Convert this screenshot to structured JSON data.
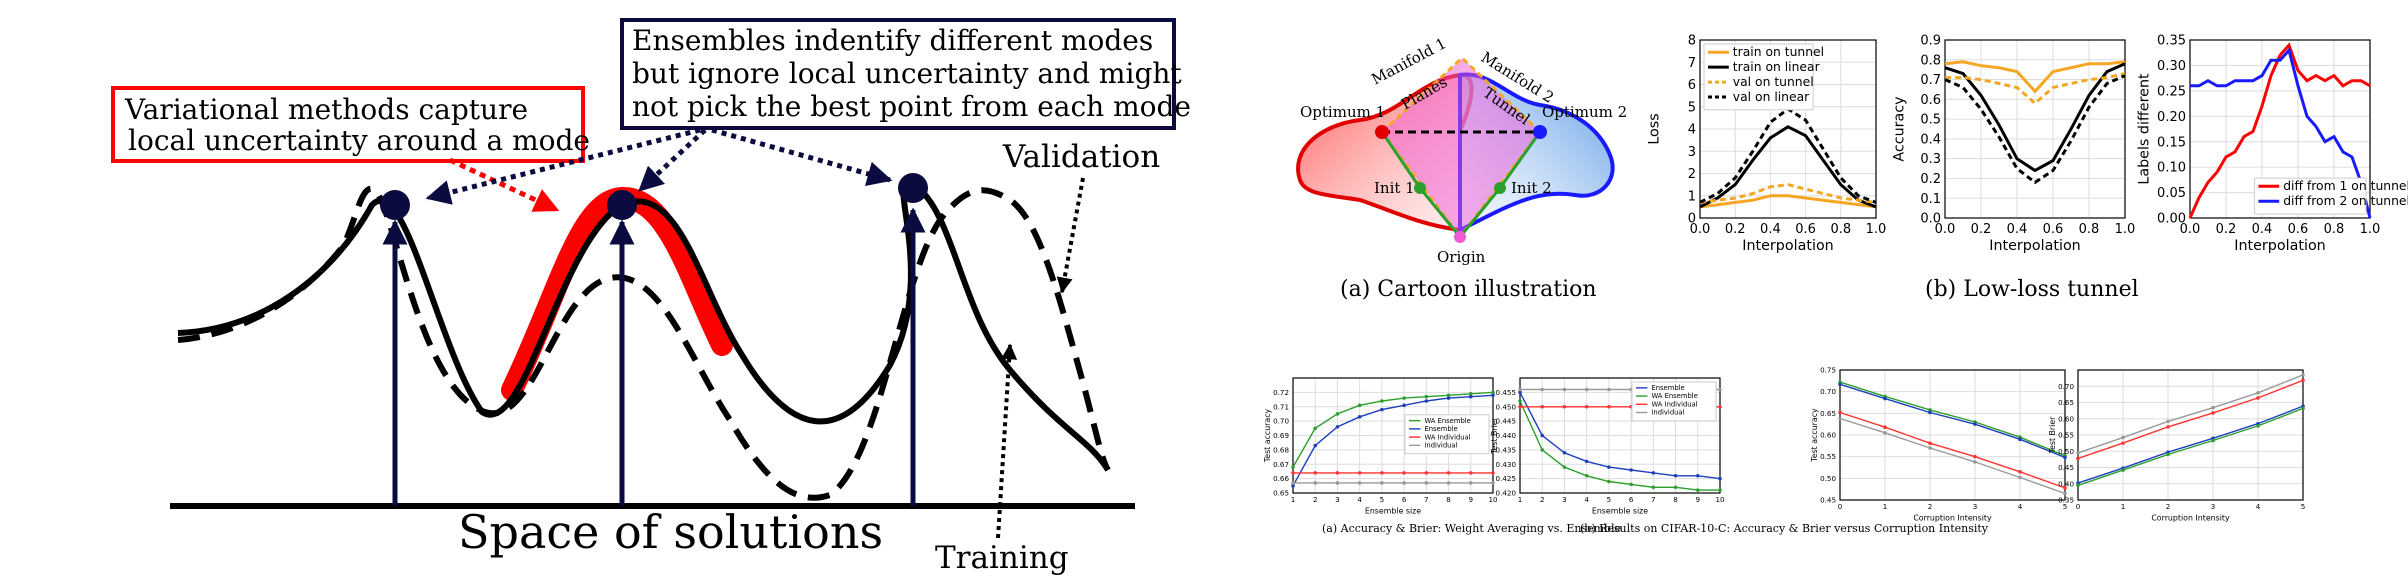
{
  "left_diagram": {
    "variational_box": [
      "Variational methods capture",
      "local uncertainty around a mode"
    ],
    "ensembles_box": [
      "Ensembles indentify different modes",
      "but ignore local uncertainty and might",
      "not pick the best point from each mode"
    ],
    "validation_label": "Validation",
    "training_label": "Training",
    "space_label": "Space of solutions"
  },
  "cartoon": {
    "labels": {
      "manifold1": "Manifold 1",
      "manifold2": "Manifold 2",
      "optimum1": "Optimum 1",
      "optimum2": "Optimum 2",
      "planes": "Planes",
      "tunnel": "Tunnel",
      "init1": "Init 1",
      "init2": "Init 2",
      "origin": "Origin"
    },
    "caption": "(a)  Cartoon illustration"
  },
  "tunnel_caption": "(b)  Low-loss tunnel",
  "colors": {
    "red": "#ff0000",
    "orange": "#f5a623",
    "blue": "#1a1aff",
    "green": "#2ca02c",
    "navy": "#0b0b3f",
    "pink": "#f05ad6"
  },
  "chart_data": [
    {
      "type": "line",
      "xlabel": "Interpolation",
      "ylabel": "Loss",
      "xlim": [
        0,
        1
      ],
      "ylim": [
        0,
        8
      ],
      "xticks": [
        "0.0",
        "0.2",
        "0.4",
        "0.6",
        "0.8",
        "1.0"
      ],
      "yticks": [
        "0",
        "1",
        "2",
        "3",
        "4",
        "5",
        "6",
        "7",
        "8"
      ],
      "legend": "top-left",
      "grid": true,
      "x": [
        0,
        0.1,
        0.2,
        0.3,
        0.4,
        0.5,
        0.6,
        0.7,
        0.8,
        0.9,
        1.0
      ],
      "series": [
        {
          "name": "train on tunnel",
          "color": "#f5a623",
          "dash": false,
          "values": [
            0.5,
            0.6,
            0.7,
            0.8,
            1.0,
            1.0,
            0.9,
            0.8,
            0.7,
            0.6,
            0.5
          ]
        },
        {
          "name": "train on linear",
          "color": "#000000",
          "dash": false,
          "values": [
            0.5,
            0.9,
            1.5,
            2.6,
            3.6,
            4.1,
            3.7,
            2.6,
            1.5,
            0.8,
            0.5
          ]
        },
        {
          "name": "val on tunnel",
          "color": "#f5a623",
          "dash": true,
          "values": [
            0.7,
            0.8,
            0.9,
            1.1,
            1.4,
            1.5,
            1.3,
            1.1,
            0.9,
            0.8,
            0.7
          ]
        },
        {
          "name": "val on linear",
          "color": "#000000",
          "dash": true,
          "values": [
            0.7,
            1.1,
            1.8,
            3.0,
            4.3,
            4.9,
            4.4,
            3.1,
            1.8,
            1.0,
            0.7
          ]
        }
      ]
    },
    {
      "type": "line",
      "xlabel": "Interpolation",
      "ylabel": "Accuracy",
      "xlim": [
        0,
        1
      ],
      "ylim": [
        0,
        0.9
      ],
      "xticks": [
        "0.0",
        "0.2",
        "0.4",
        "0.6",
        "0.8",
        "1.0"
      ],
      "yticks": [
        "0.0",
        "0.1",
        "0.2",
        "0.3",
        "0.4",
        "0.5",
        "0.6",
        "0.7",
        "0.8",
        "0.9"
      ],
      "grid": true,
      "x": [
        0,
        0.1,
        0.2,
        0.3,
        0.4,
        0.5,
        0.6,
        0.7,
        0.8,
        0.9,
        1.0
      ],
      "series": [
        {
          "color": "#f5a623",
          "dash": false,
          "values": [
            0.78,
            0.79,
            0.77,
            0.76,
            0.74,
            0.64,
            0.74,
            0.76,
            0.78,
            0.78,
            0.79
          ]
        },
        {
          "color": "#000000",
          "dash": false,
          "values": [
            0.76,
            0.73,
            0.62,
            0.47,
            0.3,
            0.24,
            0.29,
            0.45,
            0.62,
            0.74,
            0.78
          ]
        },
        {
          "color": "#f5a623",
          "dash": true,
          "values": [
            0.71,
            0.71,
            0.7,
            0.68,
            0.66,
            0.58,
            0.66,
            0.68,
            0.7,
            0.71,
            0.73
          ]
        },
        {
          "color": "#000000",
          "dash": true,
          "values": [
            0.7,
            0.66,
            0.55,
            0.41,
            0.25,
            0.18,
            0.24,
            0.39,
            0.56,
            0.68,
            0.72
          ]
        }
      ]
    },
    {
      "type": "line",
      "xlabel": "Interpolation",
      "ylabel": "Labels different",
      "xlim": [
        0,
        1
      ],
      "ylim": [
        0,
        0.35
      ],
      "xticks": [
        "0.0",
        "0.2",
        "0.4",
        "0.6",
        "0.8",
        "1.0"
      ],
      "yticks": [
        "0.00",
        "0.05",
        "0.10",
        "0.15",
        "0.20",
        "0.25",
        "0.30",
        "0.35"
      ],
      "legend": "bottom-right",
      "grid": true,
      "x": [
        0,
        0.05,
        0.1,
        0.15,
        0.2,
        0.25,
        0.3,
        0.35,
        0.4,
        0.45,
        0.5,
        0.55,
        0.6,
        0.65,
        0.7,
        0.75,
        0.8,
        0.85,
        0.9,
        0.95,
        1.0
      ],
      "series": [
        {
          "name": "diff from 1 on tunnel",
          "color": "#ff0000",
          "dash": false,
          "values": [
            0.0,
            0.04,
            0.07,
            0.09,
            0.12,
            0.13,
            0.16,
            0.17,
            0.22,
            0.28,
            0.32,
            0.34,
            0.29,
            0.27,
            0.28,
            0.27,
            0.28,
            0.26,
            0.27,
            0.27,
            0.26
          ]
        },
        {
          "name": "diff from 2 on tunnel",
          "color": "#1a1aff",
          "dash": false,
          "values": [
            0.26,
            0.26,
            0.27,
            0.26,
            0.26,
            0.27,
            0.27,
            0.27,
            0.28,
            0.31,
            0.31,
            0.33,
            0.26,
            0.2,
            0.18,
            0.15,
            0.16,
            0.13,
            0.12,
            0.07,
            0.0
          ]
        }
      ]
    },
    {
      "type": "line",
      "xlabel": "Ensemble size",
      "ylabel": "Test accuracy",
      "legend": "right",
      "grid": true,
      "xlim": [
        1,
        10
      ],
      "ylim": [
        0.65,
        0.73
      ],
      "xticks": [
        "1",
        "2",
        "3",
        "4",
        "5",
        "6",
        "7",
        "8",
        "9",
        "10"
      ],
      "yticks": [
        "0.65",
        "0.66",
        "0.67",
        "0.68",
        "0.69",
        "0.70",
        "0.71",
        "0.72"
      ],
      "x": [
        1,
        2,
        3,
        4,
        5,
        6,
        7,
        8,
        9,
        10
      ],
      "series": [
        {
          "name": "WA Ensemble",
          "color": "#2ca02c",
          "dash": false,
          "values": [
            0.668,
            0.695,
            0.705,
            0.711,
            0.714,
            0.716,
            0.717,
            0.718,
            0.719,
            0.72
          ]
        },
        {
          "name": "Ensemble",
          "color": "#1f3fbf",
          "dash": false,
          "values": [
            0.655,
            0.683,
            0.696,
            0.703,
            0.708,
            0.711,
            0.714,
            0.716,
            0.717,
            0.718
          ]
        },
        {
          "name": "WA Individual",
          "color": "#ff3333",
          "dash": false,
          "values": [
            0.664,
            0.664,
            0.664,
            0.664,
            0.664,
            0.664,
            0.664,
            0.664,
            0.664,
            0.664
          ]
        },
        {
          "name": "Individual",
          "color": "#999999",
          "dash": false,
          "values": [
            0.657,
            0.657,
            0.657,
            0.657,
            0.657,
            0.657,
            0.657,
            0.657,
            0.657,
            0.657
          ]
        }
      ]
    },
    {
      "type": "line",
      "xlabel": "Ensemble size",
      "ylabel": "Test Brier",
      "legend": "top-right",
      "grid": true,
      "xlim": [
        1,
        10
      ],
      "ylim": [
        0.42,
        0.46
      ],
      "xticks": [
        "1",
        "2",
        "3",
        "4",
        "5",
        "6",
        "7",
        "8",
        "9",
        "10"
      ],
      "yticks": [
        "0.420",
        "0.425",
        "0.430",
        "0.435",
        "0.440",
        "0.445",
        "0.450",
        "0.455"
      ],
      "x": [
        1,
        2,
        3,
        4,
        5,
        6,
        7,
        8,
        9,
        10
      ],
      "series": [
        {
          "name": "Ensemble",
          "color": "#1f3fbf",
          "dash": false,
          "values": [
            0.455,
            0.44,
            0.434,
            0.431,
            0.429,
            0.428,
            0.427,
            0.426,
            0.426,
            0.425
          ]
        },
        {
          "name": "WA Ensemble",
          "color": "#2ca02c",
          "dash": false,
          "values": [
            0.452,
            0.435,
            0.429,
            0.426,
            0.424,
            0.423,
            0.422,
            0.422,
            0.421,
            0.421
          ]
        },
        {
          "name": "WA Individual",
          "color": "#ff3333",
          "dash": false,
          "values": [
            0.45,
            0.45,
            0.45,
            0.45,
            0.45,
            0.45,
            0.45,
            0.45,
            0.45,
            0.45
          ]
        },
        {
          "name": "Individual",
          "color": "#999999",
          "dash": false,
          "values": [
            0.456,
            0.456,
            0.456,
            0.456,
            0.456,
            0.456,
            0.456,
            0.456,
            0.456,
            0.456
          ]
        }
      ]
    },
    {
      "type": "line",
      "xlabel": "Corruption Intensity",
      "ylabel": "Test accuracy",
      "grid": true,
      "xlim": [
        0,
        5
      ],
      "ylim": [
        0.45,
        0.75
      ],
      "xticks": [
        "0",
        "1",
        "2",
        "3",
        "4",
        "5"
      ],
      "yticks": [
        "0.45",
        "0.50",
        "0.55",
        "0.60",
        "0.65",
        "0.70",
        "0.75"
      ],
      "x": [
        0,
        1,
        2,
        3,
        4,
        5
      ],
      "series": [
        {
          "color": "#2ca02c",
          "dash": false,
          "values": [
            0.722,
            0.689,
            0.658,
            0.63,
            0.595,
            0.552
          ]
        },
        {
          "color": "#1f3fbf",
          "dash": false,
          "values": [
            0.717,
            0.684,
            0.652,
            0.625,
            0.59,
            0.548
          ]
        },
        {
          "color": "#ff3333",
          "dash": false,
          "values": [
            0.652,
            0.618,
            0.581,
            0.55,
            0.515,
            0.478
          ]
        },
        {
          "color": "#999999",
          "dash": false,
          "values": [
            0.638,
            0.605,
            0.57,
            0.538,
            0.502,
            0.465
          ]
        }
      ]
    },
    {
      "type": "line",
      "xlabel": "Corruption Intensity",
      "ylabel": "Test Brier",
      "grid": true,
      "xlim": [
        0,
        5
      ],
      "ylim": [
        0.35,
        0.75
      ],
      "xticks": [
        "0",
        "1",
        "2",
        "3",
        "4",
        "5"
      ],
      "yticks": [
        "0.35",
        "0.40",
        "0.45",
        "0.50",
        "0.55",
        "0.60",
        "0.65",
        "0.70"
      ],
      "x": [
        0,
        1,
        2,
        3,
        4,
        5
      ],
      "series": [
        {
          "color": "#999999",
          "dash": false,
          "values": [
            0.495,
            0.542,
            0.592,
            0.634,
            0.68,
            0.735
          ]
        },
        {
          "color": "#ff3333",
          "dash": false,
          "values": [
            0.478,
            0.525,
            0.575,
            0.618,
            0.664,
            0.718
          ]
        },
        {
          "color": "#1f3fbf",
          "dash": false,
          "values": [
            0.402,
            0.448,
            0.497,
            0.54,
            0.585,
            0.639
          ]
        },
        {
          "color": "#2ca02c",
          "dash": false,
          "values": [
            0.395,
            0.442,
            0.49,
            0.533,
            0.578,
            0.632
          ]
        }
      ]
    }
  ],
  "small_captions": {
    "left": "(a) Accuracy & Brier: Weight Averaging vs. Ensemble",
    "right": "(b) Results on CIFAR-10-C: Accuracy & Brier versus Corruption Intensity"
  }
}
